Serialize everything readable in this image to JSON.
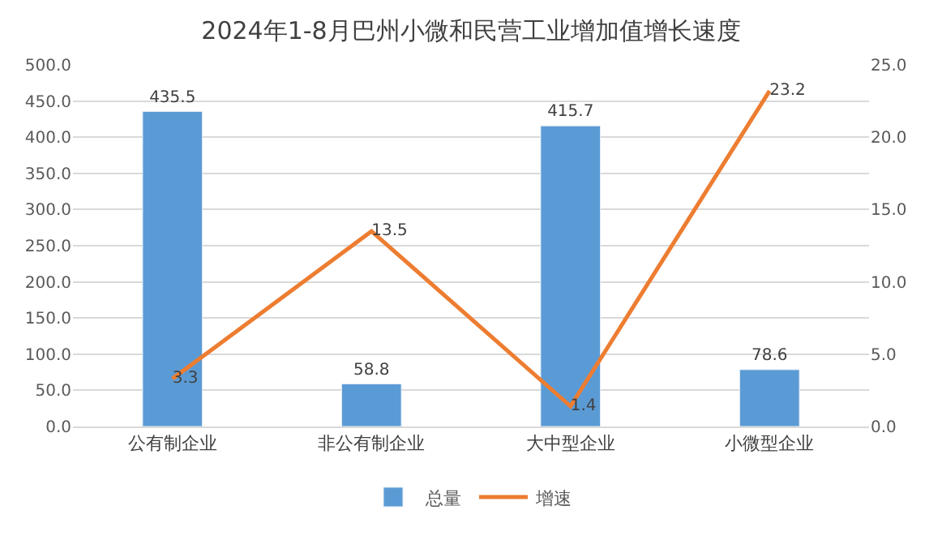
{
  "chart_data": {
    "type": "bar",
    "title": "2024年1-8月巴州小微和民营工业增加值增长速度",
    "categories": [
      "公有制企业",
      "非公有制企业",
      "大中型企业",
      "小微型企业"
    ],
    "series": [
      {
        "name": "总量",
        "color": "#5b9bd5",
        "values": [
          435.5,
          58.8,
          415.7,
          78.6
        ]
      },
      {
        "name": "增速",
        "type": "line",
        "axis": "y2",
        "color": "#ed7d31",
        "values": [
          3.3,
          13.5,
          1.4,
          23.2
        ]
      }
    ],
    "ylim": [
      0,
      500
    ],
    "yticks": [
      {
        "value": 0,
        "label": "0.0"
      },
      {
        "value": 50,
        "label": "50.0"
      },
      {
        "value": 100,
        "label": "100.0"
      },
      {
        "value": 150,
        "label": "150.0"
      },
      {
        "value": 200,
        "label": "200.0"
      },
      {
        "value": 250,
        "label": "250.0"
      },
      {
        "value": 300,
        "label": "300.0"
      },
      {
        "value": 350,
        "label": "350.0"
      },
      {
        "value": 400,
        "label": "400.0"
      },
      {
        "value": 450,
        "label": "450.0"
      },
      {
        "value": 500,
        "label": "500.0"
      }
    ],
    "y2lim": [
      0,
      25
    ],
    "y2ticks": [
      {
        "value": 0,
        "label": "0.0"
      },
      {
        "value": 5,
        "label": "5.0"
      },
      {
        "value": 10,
        "label": "10.0"
      },
      {
        "value": 15,
        "label": "15.0"
      },
      {
        "value": 20,
        "label": "20.0"
      },
      {
        "value": 25,
        "label": "25.0"
      }
    ],
    "grid": "y",
    "legend": "bottom",
    "data_labels": true,
    "marker": "none",
    "line_style": "solid"
  }
}
